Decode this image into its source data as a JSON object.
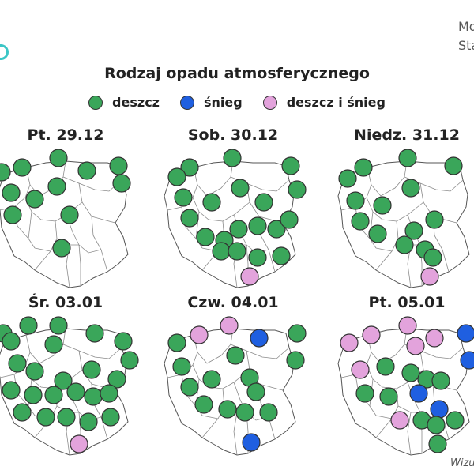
{
  "corner": {
    "line1": "Mo",
    "line2": "Sta"
  },
  "title": "Rodzaj opadu atmosferycznego",
  "colors": {
    "deszcz": "#3aa65a",
    "snieg": "#1f5fe0",
    "deszcz_i_snieg": "#e3a3dc",
    "border": "#333333",
    "outline": "#555555"
  },
  "legend": [
    {
      "key": "deszcz",
      "label": "deszcz"
    },
    {
      "key": "snieg",
      "label": "śnieg"
    },
    {
      "key": "deszcz_i_snieg",
      "label": "deszcz i śnieg"
    }
  ],
  "footer": "Wizu",
  "panels": [
    {
      "date": "Pt. 29.12",
      "types": [
        "deszcz",
        "deszcz",
        "deszcz",
        "deszcz",
        "deszcz",
        "deszcz",
        "deszcz",
        "deszcz",
        "deszcz",
        "deszcz",
        "deszcz",
        "deszcz"
      ]
    },
    {
      "date": "Sob. 30.12",
      "types": [
        "deszcz",
        "deszcz",
        "deszcz",
        "deszcz",
        "deszcz",
        "deszcz",
        "deszcz",
        "deszcz",
        "deszcz",
        "deszcz",
        "deszcz",
        "deszcz",
        "deszcz",
        "deszcz",
        "deszcz",
        "deszcz",
        "deszcz",
        "deszcz",
        "deszcz",
        "deszcz",
        "deszcz_i_snieg"
      ]
    },
    {
      "date": "Niedz. 31.12",
      "types": [
        "deszcz",
        "deszcz",
        "deszcz",
        "deszcz",
        "deszcz",
        "deszcz",
        "deszcz",
        "deszcz",
        "deszcz",
        "deszcz",
        "deszcz",
        "deszcz",
        "deszcz",
        "deszcz",
        "deszcz_i_snieg"
      ]
    },
    {
      "date": "Śr. 03.01",
      "types": [
        "deszcz",
        "deszcz",
        "deszcz",
        "deszcz",
        "deszcz",
        "deszcz",
        "deszcz",
        "deszcz",
        "deszcz",
        "deszcz",
        "deszcz",
        "deszcz",
        "deszcz",
        "deszcz",
        "deszcz",
        "deszcz",
        "deszcz",
        "deszcz",
        "deszcz",
        "deszcz",
        "deszcz",
        "deszcz",
        "deszcz",
        "deszcz",
        "deszcz_i_snieg"
      ]
    },
    {
      "date": "Czw. 04.01",
      "types": [
        "deszcz_i_snieg",
        "deszcz_i_snieg",
        "snieg",
        "deszcz",
        "deszcz",
        "deszcz",
        "deszcz",
        "deszcz",
        "deszcz",
        "deszcz",
        "deszcz",
        "deszcz",
        "deszcz",
        "deszcz",
        "deszcz",
        "deszcz",
        "snieg"
      ]
    },
    {
      "date": "Pt. 05.01",
      "types": [
        "deszcz_i_snieg",
        "deszcz_i_snieg",
        "snieg",
        "deszcz_i_snieg",
        "deszcz_i_snieg",
        "deszcz_i_snieg",
        "snieg",
        "deszcz_i_snieg",
        "deszcz",
        "deszcz",
        "deszcz",
        "deszcz",
        "snieg",
        "deszcz",
        "deszcz",
        "snieg",
        "deszcz_i_snieg",
        "deszcz",
        "deszcz",
        "deszcz",
        "deszcz"
      ]
    }
  ]
}
